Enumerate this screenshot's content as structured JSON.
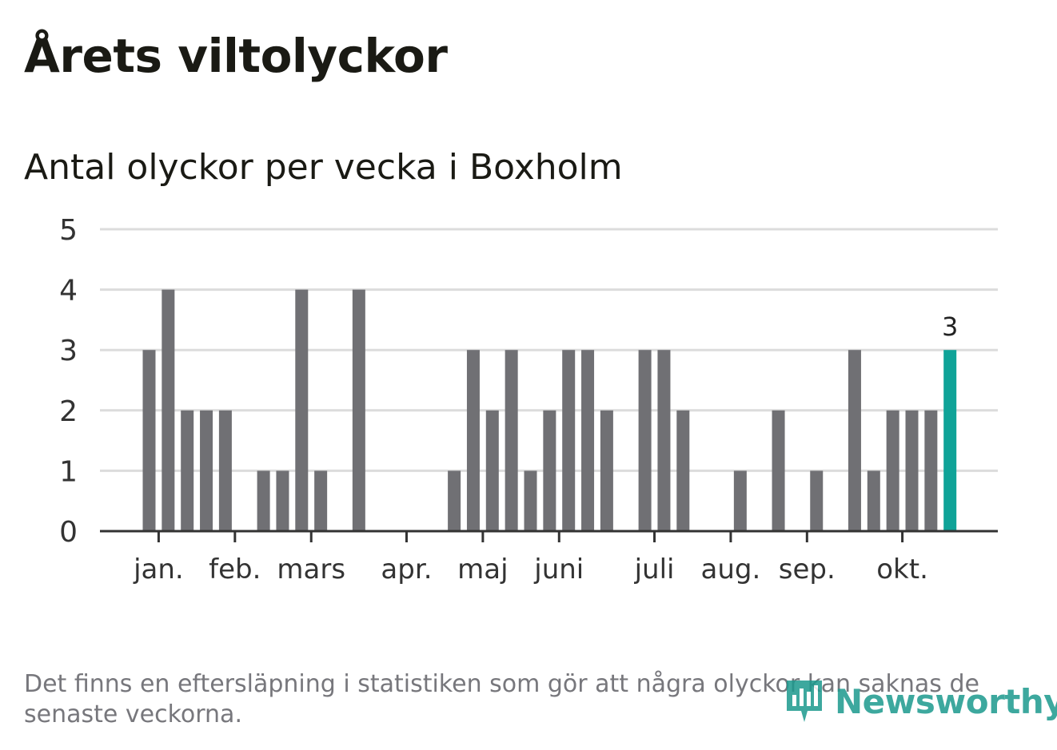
{
  "header": {
    "title": "Årets viltolyckor",
    "subtitle": "Antal olyckor per vecka i Boxholm"
  },
  "footnote": "Det finns en eftersläpning i statistiken som gör att några olyckor kan saknas de senaste veckorna.",
  "logo": {
    "text": "Newsworthy",
    "icon": "bar-chart-badge-icon"
  },
  "colors": {
    "bar": "#707074",
    "highlight": "#0fa398",
    "grid": "#dcdcdc",
    "axis": "#333333"
  },
  "chart_data": {
    "type": "bar",
    "title": "Antal olyckor per vecka i Boxholm",
    "xlabel": "",
    "ylabel": "",
    "ylim": [
      0,
      5
    ],
    "yticks": [
      0,
      1,
      2,
      3,
      4,
      5
    ],
    "grid": true,
    "weeks": [
      1,
      2,
      3,
      4,
      5,
      6,
      7,
      8,
      9,
      10,
      11,
      12,
      13,
      14,
      15,
      16,
      17,
      18,
      19,
      20,
      21,
      22,
      23,
      24,
      25,
      26,
      27,
      28,
      29,
      30,
      31,
      32,
      33,
      34,
      35,
      36,
      37,
      38,
      39,
      40,
      41,
      42,
      43
    ],
    "values": [
      3,
      4,
      2,
      2,
      2,
      0,
      1,
      1,
      4,
      1,
      0,
      4,
      0,
      0,
      0,
      0,
      1,
      3,
      2,
      3,
      1,
      2,
      3,
      3,
      2,
      0,
      3,
      3,
      2,
      0,
      0,
      1,
      0,
      2,
      0,
      1,
      0,
      3,
      1,
      2,
      2,
      2,
      3
    ],
    "highlight_index": 42,
    "highlight_label": "3",
    "month_ticks": [
      {
        "label": "jan.",
        "week": 1.5
      },
      {
        "label": "feb.",
        "week": 5.5
      },
      {
        "label": "mars",
        "week": 9.5
      },
      {
        "label": "apr.",
        "week": 14.5
      },
      {
        "label": "maj",
        "week": 18.5
      },
      {
        "label": "juni",
        "week": 22.5
      },
      {
        "label": "juli",
        "week": 27.5
      },
      {
        "label": "aug.",
        "week": 31.5
      },
      {
        "label": "sep.",
        "week": 35.5
      },
      {
        "label": "okt.",
        "week": 40.5
      }
    ]
  }
}
